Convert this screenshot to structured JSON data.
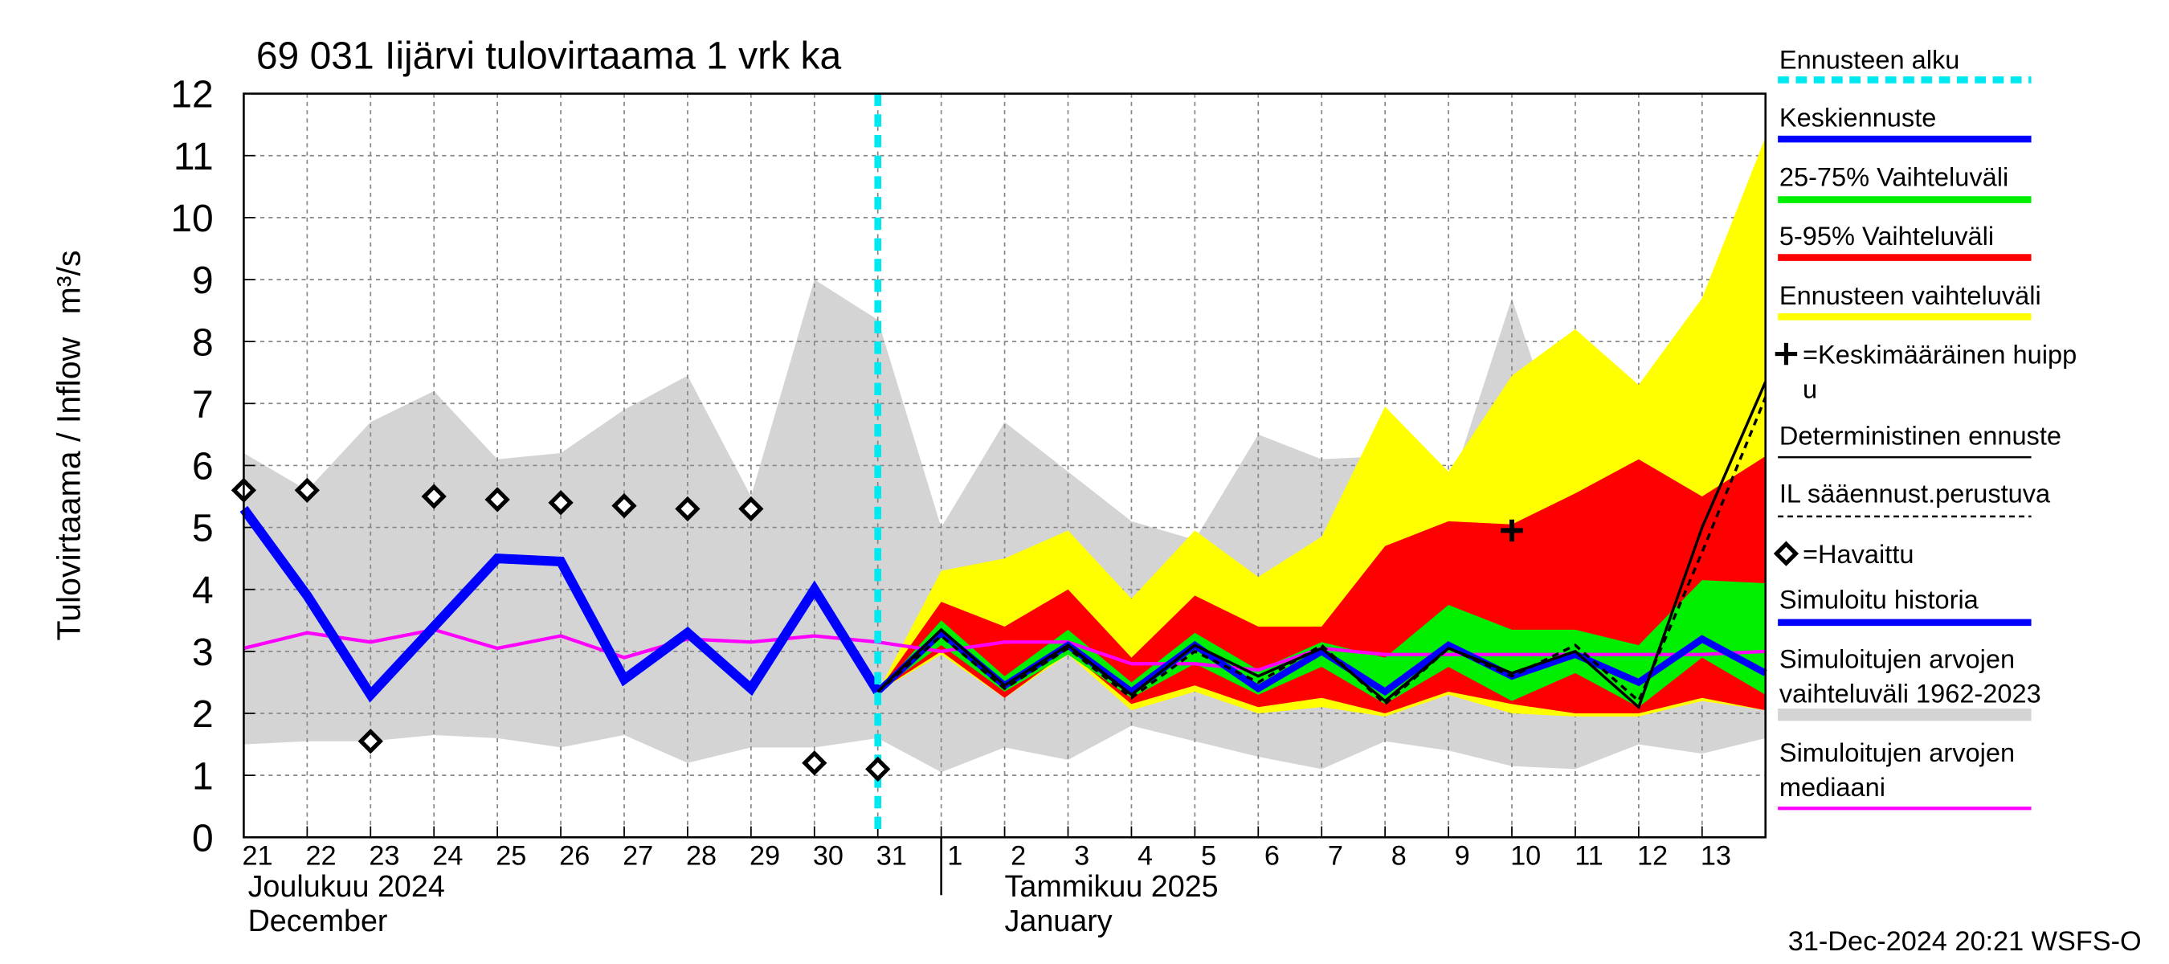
{
  "chart_data": {
    "type": "line",
    "title": "69 031 Iijärvi tulovirtaama 1 vrk ka",
    "ylabel": "Tulovirtaama / Inflow",
    "yunit": "m³/s",
    "x": [
      "2024-12-21",
      "2024-12-22",
      "2024-12-23",
      "2024-12-24",
      "2024-12-25",
      "2024-12-26",
      "2024-12-27",
      "2024-12-28",
      "2024-12-29",
      "2024-12-30",
      "2024-12-31",
      "2025-01-01",
      "2025-01-02",
      "2025-01-03",
      "2025-01-04",
      "2025-01-05",
      "2025-01-06",
      "2025-01-07",
      "2025-01-08",
      "2025-01-09",
      "2025-01-10",
      "2025-01-11",
      "2025-01-12",
      "2025-01-13",
      "2025-01-14"
    ],
    "xticks": [
      {
        "value": "2024-12-21",
        "label": "21"
      },
      {
        "value": "2024-12-22",
        "label": "22"
      },
      {
        "value": "2024-12-23",
        "label": "23"
      },
      {
        "value": "2024-12-24",
        "label": "24"
      },
      {
        "value": "2024-12-25",
        "label": "25"
      },
      {
        "value": "2024-12-26",
        "label": "26"
      },
      {
        "value": "2024-12-27",
        "label": "27"
      },
      {
        "value": "2024-12-28",
        "label": "28"
      },
      {
        "value": "2024-12-29",
        "label": "29"
      },
      {
        "value": "2024-12-30",
        "label": "30"
      },
      {
        "value": "2024-12-31",
        "label": "31"
      },
      {
        "value": "2025-01-01",
        "label": "1"
      },
      {
        "value": "2025-01-02",
        "label": "2"
      },
      {
        "value": "2025-01-03",
        "label": "3"
      },
      {
        "value": "2025-01-04",
        "label": "4"
      },
      {
        "value": "2025-01-05",
        "label": "5"
      },
      {
        "value": "2025-01-06",
        "label": "6"
      },
      {
        "value": "2025-01-07",
        "label": "7"
      },
      {
        "value": "2025-01-08",
        "label": "8"
      },
      {
        "value": "2025-01-09",
        "label": "9"
      },
      {
        "value": "2025-01-10",
        "label": "10"
      },
      {
        "value": "2025-01-11",
        "label": "11"
      },
      {
        "value": "2025-01-12",
        "label": "12"
      },
      {
        "value": "2025-01-13",
        "label": "13"
      }
    ],
    "month_labels": [
      {
        "at": "2024-12-21",
        "lines": [
          "Joulukuu  2024",
          "December"
        ]
      },
      {
        "at": "2025-01-01",
        "lines": [
          "Tammikuu  2025",
          "January"
        ]
      }
    ],
    "ylim": [
      0,
      12
    ],
    "yticks": [
      0,
      1,
      2,
      3,
      4,
      5,
      6,
      7,
      8,
      9,
      10,
      11,
      12
    ],
    "grid": true,
    "series": [
      {
        "name": "Ennusteen alku",
        "kind": "vline",
        "color": "#00e8f0",
        "x": "2024-12-31"
      },
      {
        "name": "Keskiennuste",
        "kind": "line",
        "color": "#0000ff",
        "values": [
          null,
          null,
          null,
          null,
          null,
          null,
          null,
          null,
          null,
          null,
          2.35,
          3.3,
          2.45,
          3.1,
          2.35,
          3.1,
          2.4,
          3.0,
          2.35,
          3.1,
          2.6,
          2.95,
          2.5,
          3.2,
          2.65
        ]
      },
      {
        "name": "25-75% Vaihteluväli",
        "kind": "band",
        "color": "#00ee00",
        "high": [
          null,
          null,
          null,
          null,
          null,
          null,
          null,
          null,
          null,
          null,
          2.35,
          3.5,
          2.6,
          3.35,
          2.5,
          3.3,
          2.7,
          3.15,
          2.9,
          3.75,
          3.35,
          3.35,
          3.1,
          4.15,
          4.1
        ],
        "low": [
          null,
          null,
          null,
          null,
          null,
          null,
          null,
          null,
          null,
          null,
          2.35,
          3.1,
          2.35,
          2.95,
          2.25,
          2.8,
          2.3,
          2.75,
          2.15,
          2.75,
          2.2,
          2.65,
          2.1,
          2.9,
          2.3
        ]
      },
      {
        "name": "5-95% Vaihteluväli",
        "kind": "band",
        "color": "#ff0000",
        "high": [
          null,
          null,
          null,
          null,
          null,
          null,
          null,
          null,
          null,
          null,
          2.35,
          3.8,
          3.4,
          4.0,
          2.9,
          3.9,
          3.4,
          3.4,
          4.7,
          5.1,
          5.05,
          5.55,
          6.1,
          5.5,
          6.15
        ],
        "low": [
          null,
          null,
          null,
          null,
          null,
          null,
          null,
          null,
          null,
          null,
          2.35,
          3.0,
          2.25,
          3.0,
          2.15,
          2.45,
          2.1,
          2.25,
          2.0,
          2.35,
          2.15,
          2.0,
          2.0,
          2.25,
          2.05
        ]
      },
      {
        "name": "Ennusteen vaihteluväli",
        "kind": "band",
        "color": "#ffff00",
        "high": [
          null,
          null,
          null,
          null,
          null,
          null,
          null,
          null,
          null,
          null,
          2.35,
          4.3,
          4.5,
          4.95,
          3.85,
          4.95,
          4.2,
          4.85,
          6.95,
          5.9,
          7.45,
          8.2,
          7.3,
          8.7,
          11.3
        ],
        "low": [
          null,
          null,
          null,
          null,
          null,
          null,
          null,
          null,
          null,
          null,
          2.35,
          2.95,
          2.25,
          2.95,
          2.05,
          2.35,
          2.0,
          2.1,
          1.95,
          2.3,
          2.0,
          1.95,
          1.95,
          2.2,
          2.05
        ]
      },
      {
        "name": [
          "=Keskimääräinen huipp",
          "u"
        ],
        "kind": "peak",
        "color": "#000000",
        "values": [
          null,
          null,
          null,
          null,
          null,
          null,
          null,
          null,
          null,
          null,
          null,
          null,
          null,
          null,
          null,
          null,
          null,
          null,
          null,
          null,
          4.95,
          null,
          null,
          null,
          null
        ]
      },
      {
        "name": "Deterministinen ennuste",
        "kind": "line",
        "color": "#000000",
        "values": [
          null,
          null,
          null,
          null,
          null,
          null,
          null,
          null,
          null,
          null,
          2.35,
          3.35,
          2.45,
          3.1,
          2.3,
          3.1,
          2.6,
          3.05,
          2.2,
          3.05,
          2.65,
          3.0,
          2.1,
          5.0,
          7.35
        ]
      },
      {
        "name": "IL sääennust.perustuva",
        "kind": "dashed",
        "color": "#000000",
        "values": [
          null,
          null,
          null,
          null,
          null,
          null,
          null,
          null,
          null,
          null,
          2.35,
          3.25,
          2.4,
          3.05,
          2.25,
          3.0,
          2.5,
          3.1,
          2.15,
          3.05,
          2.6,
          3.1,
          2.2,
          4.6,
          7.1
        ]
      },
      {
        "name": "=Havaittu",
        "kind": "diamond",
        "color": "#000000",
        "values": [
          5.6,
          5.6,
          1.55,
          5.5,
          5.45,
          5.4,
          5.35,
          5.3,
          5.3,
          1.2,
          1.1,
          null,
          null,
          null,
          null,
          null,
          null,
          null,
          null,
          null,
          null,
          null,
          null,
          null,
          null
        ]
      },
      {
        "name": "Simuloitu historia",
        "kind": "history",
        "color": "#0000ff",
        "values": [
          5.3,
          3.9,
          2.3,
          3.4,
          4.5,
          4.45,
          2.55,
          3.3,
          2.4,
          4.0,
          2.35,
          null,
          null,
          null,
          null,
          null,
          null,
          null,
          null,
          null,
          null,
          null,
          null,
          null,
          null
        ]
      },
      {
        "name": [
          "Simuloitujen arvojen",
          "vaihteluväli 1962-2023"
        ],
        "kind": "band",
        "color": "#d4d4d4",
        "high": [
          6.2,
          5.6,
          6.7,
          7.2,
          6.1,
          6.2,
          6.9,
          7.45,
          5.5,
          9.0,
          8.35,
          5.0,
          6.7,
          5.9,
          5.1,
          4.8,
          6.5,
          6.1,
          6.15,
          5.55,
          8.7,
          5.6,
          6.4,
          6.0,
          9.5
        ],
        "low": [
          1.5,
          1.55,
          1.55,
          1.65,
          1.6,
          1.45,
          1.65,
          1.2,
          1.45,
          1.45,
          1.6,
          1.05,
          1.45,
          1.25,
          1.8,
          1.55,
          1.3,
          1.1,
          1.55,
          1.4,
          1.15,
          1.1,
          1.5,
          1.35,
          1.6
        ]
      },
      {
        "name": [
          "Simuloitujen arvojen",
          "mediaani"
        ],
        "kind": "line",
        "color": "#ff00ff",
        "values": [
          3.05,
          3.3,
          3.15,
          3.35,
          3.05,
          3.25,
          2.9,
          3.2,
          3.15,
          3.25,
          3.15,
          3.0,
          3.15,
          3.15,
          2.8,
          2.8,
          2.7,
          3.05,
          2.95,
          2.95,
          2.95,
          2.95,
          2.95,
          2.95,
          3.0
        ]
      }
    ],
    "footer": "31-Dec-2024 20:21 WSFS-O"
  }
}
